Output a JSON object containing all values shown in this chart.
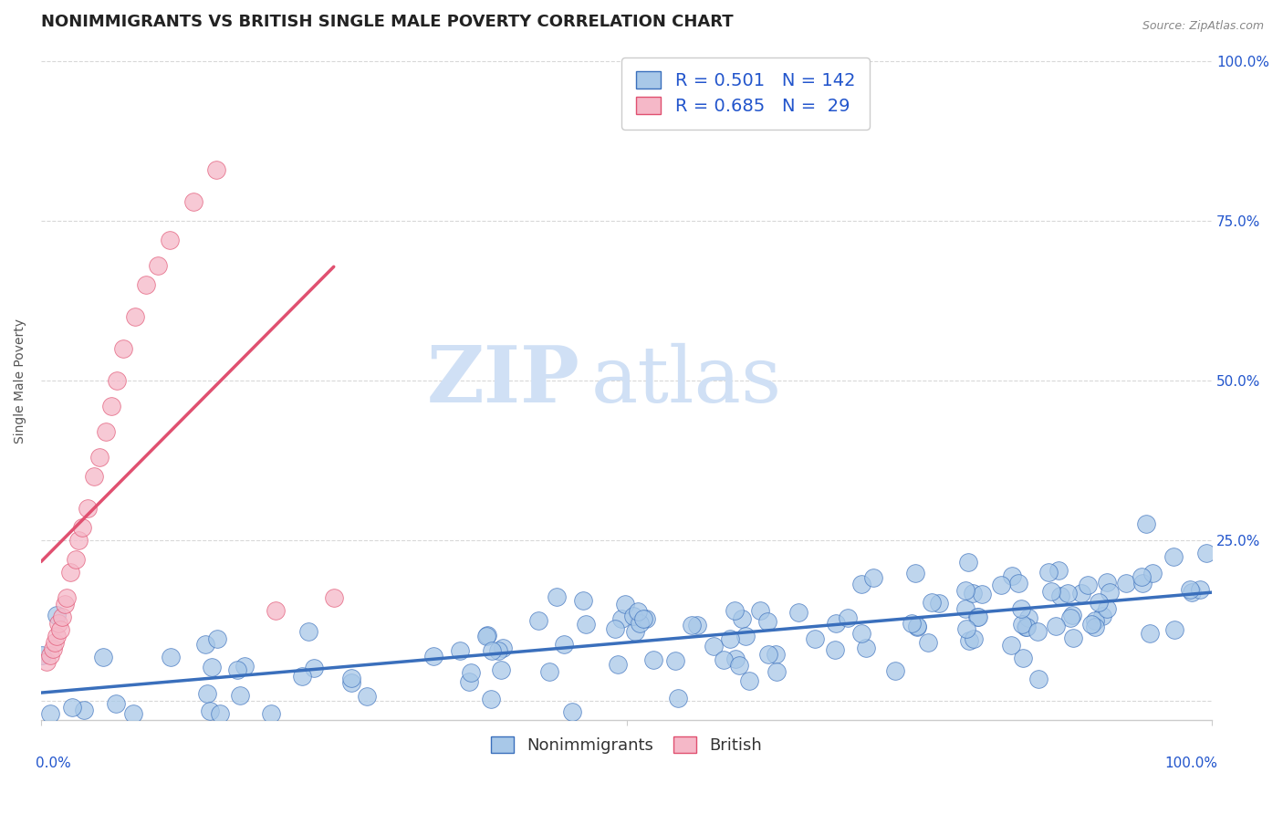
{
  "title": "NONIMMIGRANTS VS BRITISH SINGLE MALE POVERTY CORRELATION CHART",
  "source_text": "Source: ZipAtlas.com",
  "ylabel": "Single Male Poverty",
  "right_yticklabels": [
    "",
    "25.0%",
    "50.0%",
    "75.0%",
    "100.0%"
  ],
  "blue_R": 0.501,
  "blue_N": 142,
  "pink_R": 0.685,
  "pink_N": 29,
  "blue_color": "#a8c8e8",
  "pink_color": "#f5b8c8",
  "blue_line_color": "#3a6fbc",
  "pink_line_color": "#e05070",
  "legend_color": "#2255cc",
  "watermark_zip": "ZIP",
  "watermark_atlas": "atlas",
  "watermark_color": "#d0e0f5",
  "background_color": "#ffffff",
  "grid_color": "#d8d8d8",
  "title_fontsize": 13,
  "axis_label_fontsize": 10,
  "tick_fontsize": 11,
  "legend_fontsize": 14,
  "source_fontsize": 9
}
